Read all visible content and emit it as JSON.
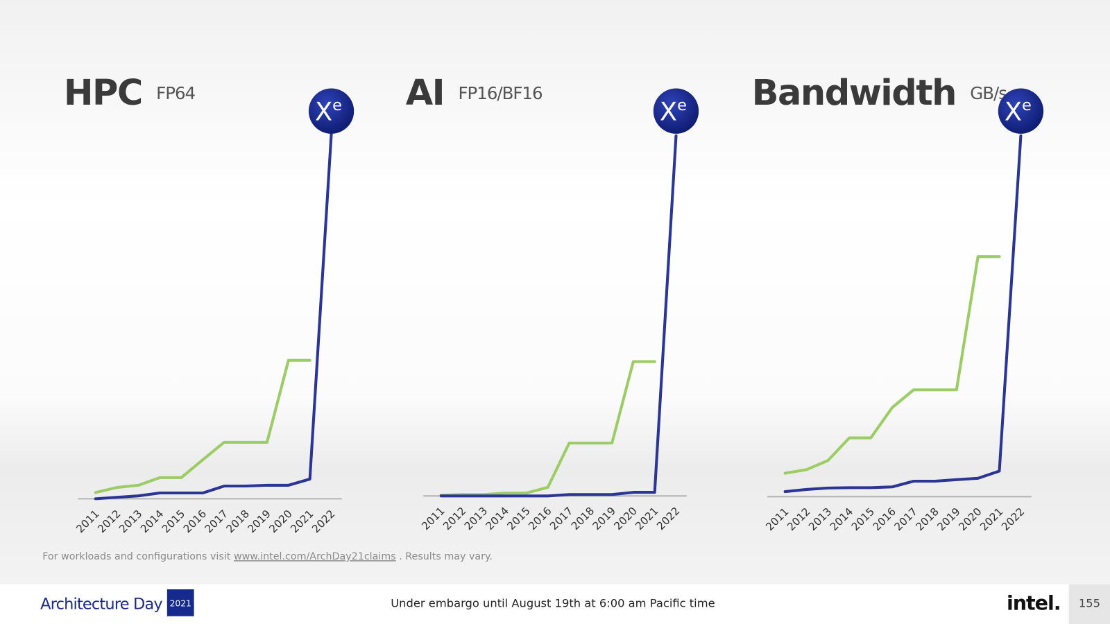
{
  "chart_data": [
    {
      "type": "line",
      "title": "HPC",
      "subtitle": "FP64",
      "badge": {
        "base": "X",
        "sup": "e"
      },
      "categories": [
        "2011",
        "2012",
        "2013",
        "2014",
        "2015",
        "2016",
        "2017",
        "2018",
        "2019",
        "2020",
        "2021",
        "2022"
      ],
      "ylim": [
        0,
        100
      ],
      "series": [
        {
          "color": "#9ccc65",
          "values": [
            1.7,
            3.1,
            3.7,
            5.8,
            5.8,
            10.7,
            15.5,
            15.5,
            15.5,
            38,
            38,
            null
          ]
        },
        {
          "color": "#2b3596",
          "values": [
            0,
            0.4,
            0.8,
            1.6,
            1.6,
            1.6,
            3.5,
            3.5,
            3.7,
            3.7,
            5.4,
            100
          ]
        }
      ]
    },
    {
      "type": "line",
      "title": "AI",
      "subtitle": "FP16/BF16",
      "badge": {
        "base": "X",
        "sup": "e"
      },
      "categories": [
        "2011",
        "2012",
        "2013",
        "2014",
        "2015",
        "2016",
        "2017",
        "2018",
        "2019",
        "2020",
        "2021",
        "2022"
      ],
      "ylim": [
        0,
        100
      ],
      "series": [
        {
          "color": "#9ccc65",
          "values": [
            0.2,
            0.4,
            0.4,
            0.8,
            0.8,
            2.4,
            14.7,
            14.7,
            14.7,
            37.3,
            37.3,
            null
          ]
        },
        {
          "color": "#2b3596",
          "values": [
            0,
            0,
            0,
            0,
            0,
            0,
            0.4,
            0.4,
            0.4,
            1,
            1,
            100
          ]
        }
      ]
    },
    {
      "type": "line",
      "title": "Bandwidth",
      "subtitle": "GB/s",
      "badge": {
        "base": "X",
        "sup": "e"
      },
      "categories": [
        "2011",
        "2012",
        "2013",
        "2014",
        "2015",
        "2016",
        "2017",
        "2018",
        "2019",
        "2020",
        "2021",
        "2022"
      ],
      "ylim": [
        0,
        100
      ],
      "series": [
        {
          "color": "#9ccc65",
          "values": [
            6.5,
            7.5,
            10,
            16.3,
            16.3,
            24.7,
            29.6,
            29.6,
            29.6,
            66.5,
            66.5,
            null
          ]
        },
        {
          "color": "#2b3596",
          "values": [
            1.4,
            2,
            2.4,
            2.5,
            2.5,
            2.7,
            4.3,
            4.3,
            4.7,
            5.1,
            7.1,
            100
          ]
        }
      ]
    }
  ],
  "disclaimer": {
    "before": "For workloads and configurations visit",
    "link": "www.intel.com/ArchDay21claims",
    "after": ". Results may vary."
  },
  "footer": {
    "event": "Architecture Day",
    "year": "2021",
    "embargo": "Under embargo until August 19th at 6:00 am Pacific time",
    "brand": "intel.",
    "page": "155"
  }
}
